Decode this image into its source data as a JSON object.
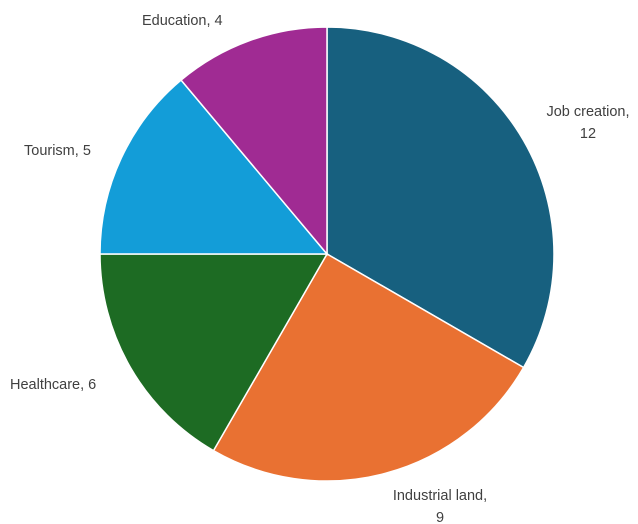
{
  "chart_data": {
    "type": "pie",
    "title": "",
    "start_angle_deg": 0,
    "direction": "clockwise",
    "legend": "none",
    "slices": [
      {
        "label": "Job creation",
        "value": 12,
        "color": "#17607f",
        "label_lines": [
          "Job creation,",
          "12"
        ]
      },
      {
        "label": "Industrial land",
        "value": 9,
        "color": "#e97132",
        "label_lines": [
          "Industrial land,",
          "9"
        ]
      },
      {
        "label": "Healthcare",
        "value": 6,
        "color": "#1d6b23",
        "label_lines": [
          "Healthcare, 6"
        ]
      },
      {
        "label": "Tourism",
        "value": 5,
        "color": "#139dd8",
        "label_lines": [
          "Tourism, 5"
        ]
      },
      {
        "label": "Education",
        "value": 4,
        "color": "#a02b93",
        "label_lines": [
          "Education, 4"
        ]
      }
    ]
  }
}
